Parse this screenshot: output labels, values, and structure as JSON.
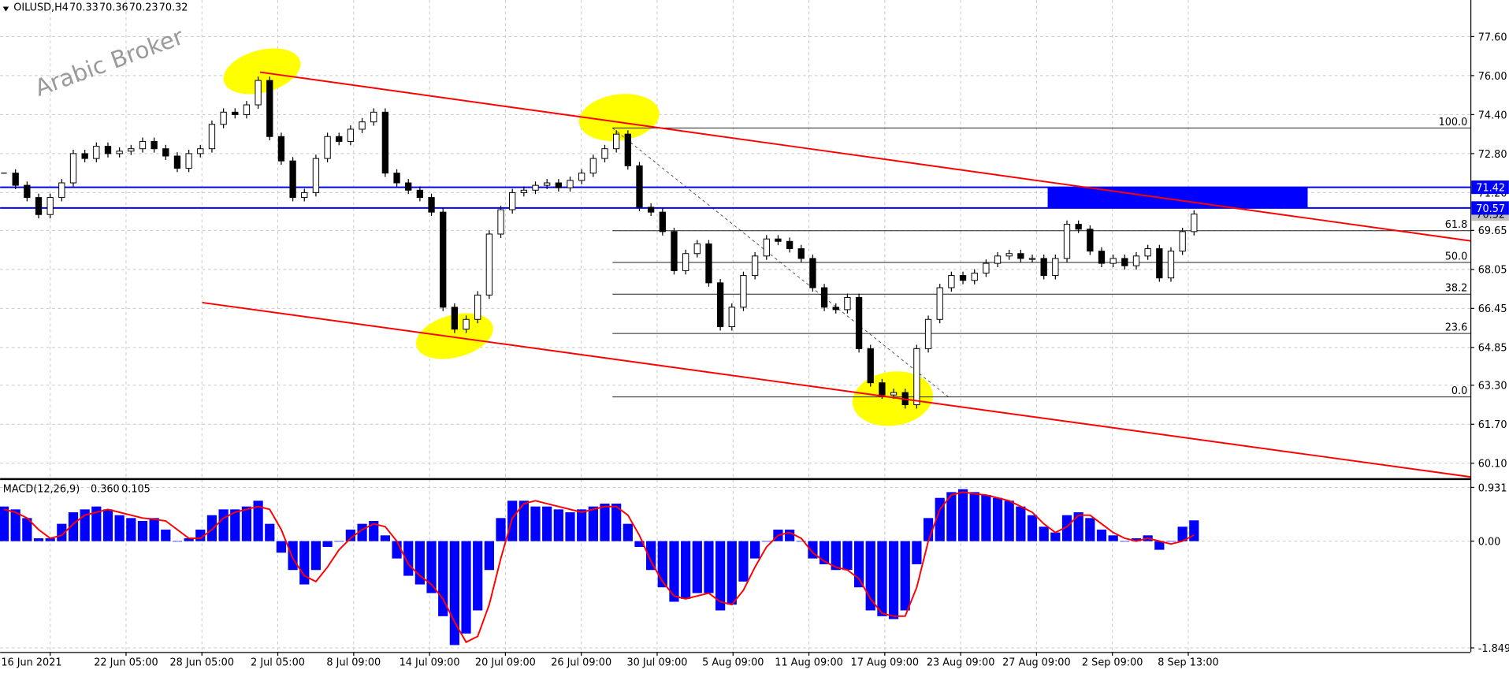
{
  "header": {
    "symbol": "OILUSD,H4",
    "ohlc": [
      70.33,
      70.36,
      70.23,
      70.32
    ]
  },
  "watermark": "Arabic Broker",
  "chart_data": [
    {
      "type": "candlestick",
      "values": [
        72.0,
        71.5,
        71.0,
        70.3,
        71.0,
        71.6,
        72.8,
        72.6,
        73.1,
        72.8,
        72.9,
        73.0,
        73.3,
        73.0,
        72.7,
        72.2,
        72.8,
        73.0,
        74.0,
        74.5,
        74.4,
        74.8,
        75.8,
        73.5,
        72.5,
        71.0,
        71.2,
        72.6,
        73.5,
        73.3,
        73.8,
        74.1,
        74.5,
        72.0,
        71.6,
        71.3,
        71.0,
        70.4,
        66.5,
        65.6,
        66.0,
        67.0,
        69.5,
        70.5,
        71.2,
        71.3,
        71.5,
        71.6,
        71.4,
        71.7,
        72.0,
        72.6,
        73.0,
        73.6,
        72.3,
        70.6,
        70.4,
        69.6,
        68.0,
        68.7,
        69.1,
        67.5,
        65.7,
        66.5,
        67.8,
        68.6,
        69.3,
        69.2,
        68.9,
        68.5,
        67.3,
        66.5,
        66.4,
        66.9,
        64.8,
        63.4,
        62.9,
        63.0,
        62.5,
        64.8,
        66.0,
        67.3,
        67.8,
        67.6,
        67.9,
        68.3,
        68.6,
        68.7,
        68.5,
        68.5,
        67.8,
        68.5,
        69.9,
        69.7,
        68.8,
        68.3,
        68.5,
        68.2,
        68.6,
        68.9,
        67.7,
        68.8,
        69.6,
        70.32
      ],
      "color": "#000000",
      "ylim": [
        59.47,
        79.1
      ],
      "yticks": [
        {
          "value": 77.6,
          "label": "77.60"
        },
        {
          "value": 76,
          "label": "76.00"
        },
        {
          "value": 74.4,
          "label": "74.40"
        },
        {
          "value": 72.8,
          "label": "72.80"
        },
        {
          "value": 71.2,
          "label": "71.20"
        },
        69.65,
        68.05,
        66.45,
        64.85,
        {
          "value": 63.3,
          "label": "63.30"
        },
        {
          "value": 61.7,
          "label": "61.70"
        },
        {
          "value": 60.1,
          "label": "60.10"
        }
      ],
      "grid": true,
      "levels": [
        71.42,
        70.57
      ],
      "level_color": "#0000ff",
      "trendlines": [
        {
          "values": [
            76.14,
            69.22
          ],
          "color": "#ff0000"
        },
        {
          "values": [
            66.69,
            59.54
          ],
          "color": "#ff0000"
        }
      ],
      "fibonacci": {
        "values": [
          73.85,
          62.82
        ],
        "levels": [
          {
            "value": 100,
            "label": "100.0"
          },
          61.8,
          {
            "value": 50,
            "label": "50.0"
          },
          38.2,
          23.6,
          {
            "value": 0,
            "label": "0.0"
          }
        ]
      }
    },
    {
      "type": "macd",
      "title": "MACD(12,26,9)",
      "readout": [
        "0.360",
        "0.105"
      ],
      "values": [
        0.6,
        0.55,
        0.4,
        0.05,
        0.05,
        0.3,
        0.5,
        0.55,
        0.6,
        0.55,
        0.45,
        0.4,
        0.35,
        0.4,
        0.2,
        0.0,
        0.05,
        0.2,
        0.45,
        0.55,
        0.55,
        0.6,
        0.7,
        0.3,
        -0.2,
        -0.5,
        -0.75,
        -0.5,
        -0.1,
        0.0,
        0.2,
        0.3,
        0.35,
        0.1,
        -0.3,
        -0.6,
        -0.75,
        -0.9,
        -1.3,
        -1.8,
        -1.6,
        -1.2,
        -0.5,
        0.4,
        0.7,
        0.7,
        0.6,
        0.6,
        0.55,
        0.5,
        0.55,
        0.6,
        0.65,
        0.65,
        0.3,
        -0.1,
        -0.5,
        -0.8,
        -1.05,
        -1.0,
        -0.9,
        -0.9,
        -1.2,
        -1.1,
        -0.7,
        -0.3,
        0.0,
        0.2,
        0.2,
        0.0,
        -0.3,
        -0.4,
        -0.5,
        -0.5,
        -0.8,
        -1.2,
        -1.3,
        -1.35,
        -1.2,
        -0.4,
        0.4,
        0.75,
        0.85,
        0.9,
        0.85,
        0.8,
        0.75,
        0.7,
        0.6,
        0.45,
        0.25,
        0.15,
        0.45,
        0.5,
        0.4,
        0.2,
        0.1,
        0.0,
        0.05,
        0.1,
        -0.15,
        0.0,
        0.25,
        0.36
      ],
      "signal": [
        0.55,
        0.5,
        0.4,
        0.2,
        0.05,
        0.1,
        0.3,
        0.45,
        0.5,
        0.55,
        0.5,
        0.45,
        0.4,
        0.38,
        0.35,
        0.2,
        0.05,
        0.05,
        0.2,
        0.4,
        0.5,
        0.55,
        0.6,
        0.55,
        0.2,
        -0.3,
        -0.6,
        -0.7,
        -0.45,
        -0.15,
        0.05,
        0.2,
        0.3,
        0.25,
        0.0,
        -0.4,
        -0.6,
        -0.75,
        -1.0,
        -1.4,
        -1.75,
        -1.65,
        -1.1,
        -0.3,
        0.4,
        0.65,
        0.7,
        0.65,
        0.6,
        0.55,
        0.5,
        0.55,
        0.6,
        0.6,
        0.45,
        0.1,
        -0.35,
        -0.7,
        -0.95,
        -1.0,
        -0.95,
        -0.9,
        -1.05,
        -1.1,
        -0.85,
        -0.45,
        -0.1,
        0.1,
        0.15,
        0.05,
        -0.2,
        -0.35,
        -0.45,
        -0.5,
        -0.65,
        -1.0,
        -1.25,
        -1.3,
        -1.3,
        -0.8,
        0.0,
        0.55,
        0.8,
        0.85,
        0.82,
        0.8,
        0.75,
        0.7,
        0.6,
        0.5,
        0.3,
        0.15,
        0.25,
        0.45,
        0.45,
        0.3,
        0.15,
        0.05,
        0.0,
        0.05,
        0.0,
        -0.05,
        0.0,
        0.105
      ],
      "color": "#0000ff",
      "signal_color": "#ff0000",
      "ylim": [
        -1.92,
        1.05
      ],
      "yticks": [
        0.931,
        {
          "value": 0,
          "label": "0.00"
        },
        -1.849
      ],
      "x_labels": [
        "16 Jun 2021",
        "22 Jun 05:00",
        "28 Jun 05:00",
        "2 Jul 05:00",
        "8 Jul 09:00",
        "14 Jul 09:00",
        "20 Jul 09:00",
        "26 Jul 09:00",
        "30 Jul 09:00",
        "5 Aug 09:00",
        "11 Aug 09:00",
        "17 Aug 09:00",
        "23 Aug 09:00",
        "27 Aug 09:00",
        "2 Sep 09:00",
        "8 Sep 13:00"
      ]
    }
  ]
}
